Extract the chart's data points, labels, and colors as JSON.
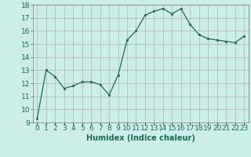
{
  "x": [
    0,
    1,
    2,
    3,
    4,
    5,
    6,
    7,
    8,
    9,
    10,
    11,
    12,
    13,
    14,
    15,
    16,
    17,
    18,
    19,
    20,
    21,
    22,
    23
  ],
  "y": [
    9.3,
    13.0,
    12.5,
    11.6,
    11.8,
    12.1,
    12.1,
    11.9,
    11.1,
    12.6,
    15.3,
    16.0,
    17.2,
    17.5,
    17.7,
    17.3,
    17.7,
    16.5,
    15.7,
    15.4,
    15.3,
    15.2,
    15.1,
    15.6
  ],
  "line_color": "#1a6b5a",
  "marker": "s",
  "marker_size": 2,
  "bg_color": "#cceee8",
  "grid_color": "#b0b0b0",
  "xlabel": "Humidex (Indice chaleur)",
  "ylim": [
    9,
    18
  ],
  "xlim": [
    -0.5,
    23.5
  ],
  "yticks": [
    9,
    10,
    11,
    12,
    13,
    14,
    15,
    16,
    17,
    18
  ],
  "xtick_labels": [
    "0",
    "1",
    "2",
    "3",
    "4",
    "5",
    "6",
    "7",
    "8",
    "9",
    "10",
    "11",
    "12",
    "13",
    "14",
    "15",
    "16",
    "17",
    "18",
    "19",
    "20",
    "21",
    "22",
    "23"
  ],
  "xlabel_fontsize": 7,
  "tick_fontsize": 6.5
}
